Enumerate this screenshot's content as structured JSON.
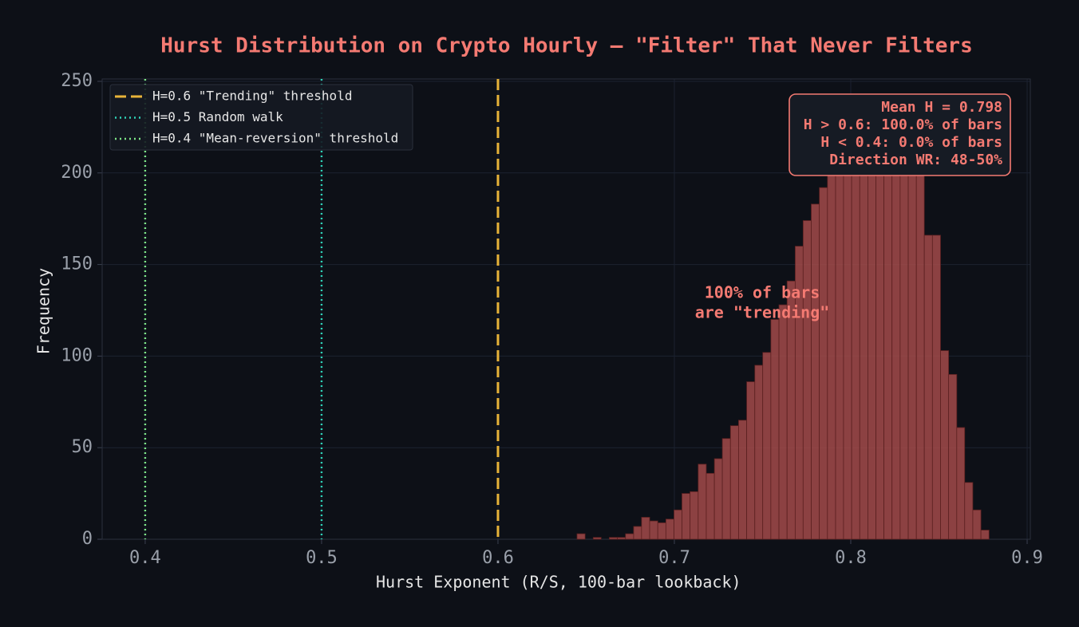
{
  "chart_data": {
    "type": "histogram",
    "title": "Hurst Distribution on Crypto Hourly — \"Filter\" That Never Filters",
    "x_label": "Hurst Exponent (R/S, 100-bar lookback)",
    "y_label": "Frequency",
    "bins": [
      0.6448,
      0.6494,
      0.654,
      0.6585,
      0.6631,
      0.6677,
      0.6723,
      0.6769,
      0.6814,
      0.686,
      0.6906,
      0.6952,
      0.6998,
      0.7043,
      0.7089,
      0.7135,
      0.7181,
      0.7227,
      0.7272,
      0.7318,
      0.7364,
      0.741,
      0.7456,
      0.7501,
      0.7547,
      0.7593,
      0.7639,
      0.7685,
      0.773,
      0.7776,
      0.7822,
      0.7868,
      0.7914,
      0.7959,
      0.8005,
      0.8051,
      0.8097,
      0.8143,
      0.8188,
      0.8234,
      0.828,
      0.8326,
      0.8372,
      0.8417,
      0.8463,
      0.8509,
      0.8555,
      0.8601,
      0.8646,
      0.8692,
      0.8738,
      0.8784
    ],
    "values": [
      3,
      0,
      1,
      0,
      1,
      1,
      3,
      7,
      12,
      10,
      9,
      11,
      16,
      25,
      26,
      41,
      36,
      44,
      55,
      62,
      65,
      86,
      95,
      102,
      120,
      128,
      141,
      160,
      174,
      183,
      192,
      210,
      222,
      228,
      232,
      235,
      230,
      226,
      222,
      212,
      206,
      205,
      200,
      166,
      166,
      103,
      90,
      61,
      31,
      16,
      5
    ],
    "color": "#a34a4a",
    "vlines": [
      {
        "name": "H=0.6 \"Trending\" threshold",
        "x": 0.6,
        "color": "#e8b339",
        "style": "dashed"
      },
      {
        "name": "H=0.5 Random walk",
        "x": 0.5,
        "color": "#2ed3b7",
        "style": "dotted"
      },
      {
        "name": "H=0.4 \"Mean-reversion\" threshold",
        "x": 0.4,
        "color": "#7ee787",
        "style": "dotted"
      }
    ],
    "annotation": [
      "100% of bars",
      "are \"trending\""
    ],
    "info_box": [
      "Mean H = 0.798",
      "H > 0.6: 100.0% of bars",
      "H < 0.4: 0.0% of bars",
      "Direction WR: 48-50%"
    ],
    "xlim": [
      0.3756,
      0.9018
    ],
    "ylim": [
      0,
      251.3
    ],
    "xticks": [
      0.4,
      0.5,
      0.6,
      0.7,
      0.8,
      0.9
    ],
    "yticks": [
      0,
      50,
      100,
      150,
      200,
      250
    ],
    "grid": true,
    "legend": "upper left"
  }
}
